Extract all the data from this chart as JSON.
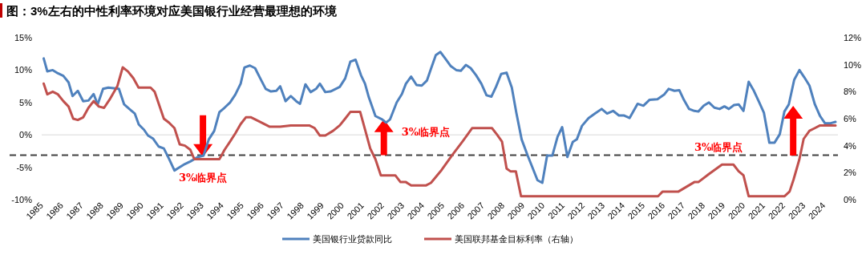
{
  "chart_data": {
    "type": "line",
    "title": "图：3%左右的中性利率环境对应美国银行业经营最理想的环境",
    "xlim": [
      1984.9,
      2024.6
    ],
    "xticks": [
      1985,
      1986,
      1987,
      1988,
      1989,
      1990,
      1991,
      1992,
      1993,
      1994,
      1995,
      1996,
      1997,
      1998,
      1999,
      2000,
      2001,
      2002,
      2003,
      2004,
      2005,
      2006,
      2007,
      2008,
      2009,
      2010,
      2011,
      2012,
      2013,
      2014,
      2015,
      2016,
      2017,
      2018,
      2019,
      2020,
      2021,
      2022,
      2023,
      2024
    ],
    "ylim": [
      -10,
      15
    ],
    "yticks": [
      {
        "value": -10,
        "label": "-10%"
      },
      {
        "value": -5,
        "label": "-5%"
      },
      {
        "value": 0,
        "label": "0%"
      },
      {
        "value": 5,
        "label": "5%"
      },
      {
        "value": 10,
        "label": "10%"
      },
      {
        "value": 15,
        "label": "15%"
      }
    ],
    "y2lim": [
      0,
      12
    ],
    "y2ticks": [
      {
        "value": 0,
        "label": "0%"
      },
      {
        "value": 2,
        "label": "2%"
      },
      {
        "value": 4,
        "label": "4%"
      },
      {
        "value": 6,
        "label": "6%"
      },
      {
        "value": 8,
        "label": "8%"
      },
      {
        "value": 10,
        "label": "10%"
      },
      {
        "value": 12,
        "label": "12%"
      }
    ],
    "legend": "bottom",
    "series": [
      {
        "name": "美国银行业贷款同比",
        "color": "#4f81bd",
        "x": [
          1985.0,
          1985.18,
          1985.45,
          1985.71,
          1985.98,
          1986.24,
          1986.44,
          1986.7,
          1986.97,
          1987.23,
          1987.49,
          1987.69,
          1987.96,
          1988.22,
          1988.48,
          1988.75,
          1989.01,
          1989.27,
          1989.54,
          1989.74,
          1990.0,
          1990.2,
          1990.46,
          1990.73,
          1990.99,
          1991.25,
          1991.52,
          1991.78,
          1992.04,
          1992.31,
          1992.7,
          1992.97,
          1993.23,
          1993.5,
          1993.76,
          1994.02,
          1994.29,
          1994.55,
          1994.82,
          1995.01,
          1995.28,
          1995.54,
          1995.8,
          1996.07,
          1996.33,
          1996.6,
          1996.79,
          1997.06,
          1997.32,
          1997.59,
          1997.78,
          1998.05,
          1998.31,
          1998.58,
          1998.77,
          1999.04,
          1999.3,
          1999.76,
          2000.03,
          2000.29,
          2000.55,
          2000.82,
          2001.02,
          2001.21,
          2001.54,
          2001.87,
          2002.07,
          2002.27,
          2002.6,
          2002.86,
          2003.06,
          2003.32,
          2003.59,
          2003.85,
          2004.11,
          2004.31,
          2004.55,
          2004.78,
          2005.04,
          2005.3,
          2005.57,
          2005.8,
          2006.05,
          2006.29,
          2006.56,
          2006.82,
          2007.08,
          2007.32,
          2007.55,
          2007.81,
          2008.08,
          2008.34,
          2008.56,
          2008.83,
          2009.13,
          2009.35,
          2009.62,
          2009.86,
          2010.1,
          2010.36,
          2010.62,
          2010.85,
          2011.11,
          2011.38,
          2011.58,
          2011.84,
          2012.17,
          2012.49,
          2012.82,
          2013.09,
          2013.39,
          2013.68,
          2013.92,
          2014.21,
          2014.61,
          2014.9,
          2015.2,
          2015.6,
          2015.93,
          2016.16,
          2016.45,
          2016.69,
          2016.92,
          2017.18,
          2017.44,
          2017.64,
          2017.91,
          2018.17,
          2018.44,
          2018.7,
          2018.94,
          2019.16,
          2019.42,
          2019.65,
          2019.89,
          2020.15,
          2020.41,
          2020.68,
          2020.91,
          2021.18,
          2021.44,
          2021.7,
          2021.93,
          2022.15,
          2022.42,
          2022.68,
          2022.92,
          2023.18,
          2023.45,
          2023.71,
          2023.95,
          2024.24,
          2024.48
        ],
        "values": [
          11.8,
          9.8,
          10.0,
          9.5,
          9.1,
          8.1,
          6.0,
          6.8,
          5.2,
          5.3,
          6.3,
          4.7,
          7.1,
          7.3,
          7.2,
          7.1,
          4.7,
          4.0,
          3.3,
          1.6,
          0.8,
          -0.1,
          -0.6,
          -1.8,
          -2.1,
          -3.7,
          -5.5,
          -5.0,
          -4.5,
          -4.1,
          -3.4,
          -3.2,
          -0.7,
          0.6,
          3.5,
          4.2,
          5.0,
          6.2,
          7.9,
          10.4,
          10.7,
          10.3,
          8.7,
          7.1,
          6.7,
          6.8,
          7.5,
          5.2,
          6.0,
          5.2,
          4.8,
          7.8,
          6.6,
          7.1,
          7.9,
          6.6,
          6.7,
          7.4,
          8.7,
          11.3,
          11.6,
          9.2,
          7.9,
          5.8,
          2.9,
          2.4,
          1.9,
          2.4,
          5.0,
          6.3,
          7.9,
          9.0,
          7.7,
          7.6,
          8.4,
          10.2,
          12.3,
          12.8,
          11.7,
          10.6,
          10.0,
          9.9,
          10.8,
          10.3,
          9.2,
          7.9,
          6.1,
          5.9,
          7.4,
          9.4,
          9.6,
          7.3,
          3.5,
          -0.7,
          -3.2,
          -4.9,
          -7.0,
          -7.4,
          -3.2,
          -3.2,
          -0.3,
          1.2,
          -3.4,
          -1.1,
          -0.7,
          1.4,
          2.6,
          3.3,
          4.0,
          3.3,
          3.7,
          3.0,
          3.0,
          2.6,
          4.8,
          4.5,
          5.4,
          5.5,
          6.2,
          7.1,
          6.8,
          6.9,
          5.4,
          4.0,
          3.7,
          3.6,
          4.5,
          5.0,
          4.2,
          4.0,
          4.4,
          4.0,
          4.6,
          4.7,
          3.7,
          8.2,
          6.8,
          5.0,
          3.4,
          -1.2,
          -1.2,
          0.1,
          3.6,
          4.7,
          8.5,
          10.0,
          8.9,
          7.6,
          4.7,
          2.9,
          1.8,
          1.8,
          2.0
        ]
      },
      {
        "name": "美国联邦基金目标利率（右轴）",
        "color": "#c0504d",
        "axis": "y2",
        "x": [
          1985.0,
          1985.18,
          1985.45,
          1985.71,
          1985.98,
          1986.24,
          1986.47,
          1986.7,
          1986.97,
          1987.23,
          1987.49,
          1987.75,
          1988.01,
          1988.28,
          1988.67,
          1988.94,
          1989.2,
          1989.47,
          1989.73,
          1990.33,
          1990.53,
          1990.99,
          1991.25,
          1991.52,
          1991.78,
          1992.04,
          1992.31,
          1992.51,
          1993.76,
          1994.02,
          1994.29,
          1994.55,
          1994.82,
          1995.08,
          1995.34,
          1995.74,
          1996.27,
          1996.53,
          1996.79,
          1997.32,
          1998.24,
          1998.51,
          1998.77,
          1999.04,
          1999.43,
          1999.76,
          2000.03,
          2000.29,
          2000.78,
          2001.02,
          2001.28,
          2001.54,
          2001.81,
          2002.53,
          2002.79,
          2003.06,
          2003.32,
          2004.05,
          2004.31,
          2004.84,
          2005.37,
          2005.9,
          2006.36,
          2007.35,
          2007.61,
          2007.85,
          2008.08,
          2008.27,
          2008.54,
          2008.8,
          2015.63,
          2015.86,
          2016.65,
          2017.44,
          2017.64,
          2018.17,
          2018.82,
          2019.39,
          2019.65,
          2019.89,
          2020.15,
          2021.93,
          2022.19,
          2022.39,
          2022.68,
          2022.89,
          2023.18,
          2023.45,
          2023.71,
          2024.48
        ],
        "values": [
          8.6,
          7.8,
          8.0,
          7.8,
          7.3,
          6.9,
          6.0,
          5.9,
          6.1,
          6.8,
          7.3,
          6.9,
          6.8,
          7.4,
          8.4,
          9.8,
          9.5,
          9.0,
          8.3,
          8.3,
          8.0,
          6.0,
          5.7,
          5.3,
          4.1,
          4.0,
          3.7,
          3.0,
          3.0,
          3.7,
          4.3,
          4.9,
          5.6,
          6.1,
          6.1,
          5.8,
          5.4,
          5.4,
          5.4,
          5.5,
          5.5,
          5.3,
          4.75,
          4.75,
          5.1,
          5.5,
          6.0,
          6.5,
          6.5,
          5.2,
          3.8,
          3.0,
          1.8,
          1.8,
          1.3,
          1.3,
          1.05,
          1.05,
          1.25,
          2.2,
          3.3,
          4.35,
          5.3,
          5.3,
          4.8,
          4.3,
          2.3,
          2.1,
          2.1,
          0.25,
          0.25,
          0.6,
          0.6,
          1.3,
          1.3,
          1.9,
          2.6,
          2.6,
          2.1,
          1.8,
          0.25,
          0.25,
          0.6,
          1.5,
          3.0,
          4.5,
          5.1,
          5.3,
          5.5,
          5.5
        ]
      }
    ],
    "ref_lines": [
      {
        "axis": "y2",
        "value": 3.3,
        "color": "#404040",
        "line_style": "dashed"
      }
    ],
    "annotations": [
      {
        "text": "3%临界点",
        "x": 1992.94,
        "y": -3.4
      },
      {
        "text": "3%临界点",
        "x": 2001.96,
        "y": 2.4
      },
      {
        "text": "3%临界点",
        "x": 2018.65,
        "y": -3.2
      }
    ]
  }
}
